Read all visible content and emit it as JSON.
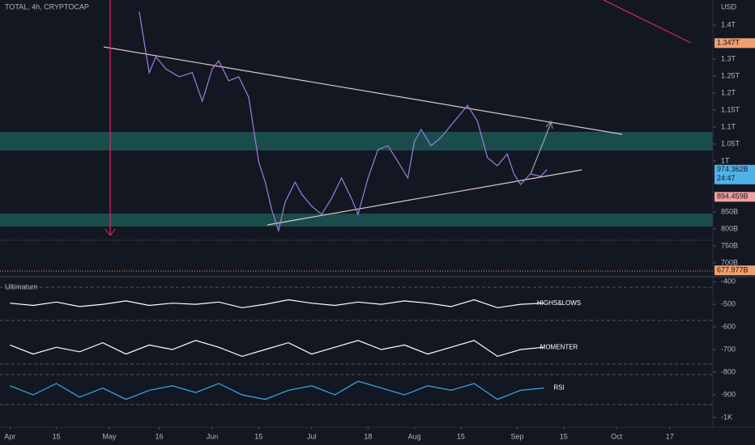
{
  "header": {
    "symbol": "TOTAL, 4h, CRYPTOCAP"
  },
  "chart_data": [
    {
      "type": "line",
      "currency": "USD",
      "color": "#9c7fe0",
      "x": [
        "May 10",
        "May 11",
        "May 13",
        "May 15",
        "May 18",
        "May 22",
        "May 26",
        "May 29",
        "Jun 1",
        "Jun 3",
        "Jun 6",
        "Jun 9",
        "Jun 12",
        "Jun 15",
        "Jun 17",
        "Jun 19",
        "Jun 21",
        "Jun 23",
        "Jun 26",
        "Jun 28",
        "Jul 1",
        "Jul 4",
        "Jul 7",
        "Jul 10",
        "Jul 13",
        "Jul 15",
        "Jul 18",
        "Jul 21",
        "Jul 24",
        "Jul 27",
        "Jul 30",
        "Aug 1",
        "Aug 3",
        "Aug 6",
        "Aug 9",
        "Aug 12",
        "Aug 15",
        "Aug 17",
        "Aug 20",
        "Aug 23",
        "Aug 26",
        "Aug 29",
        "Aug 31",
        "Sep 2",
        "Sep 5",
        "Sep 8",
        "Sep 10"
      ],
      "values": [
        1440,
        1379,
        1260,
        1307,
        1271,
        1248,
        1260,
        1176,
        1271,
        1295,
        1236,
        1248,
        1188,
        998,
        938,
        855,
        795,
        879,
        938,
        902,
        867,
        843,
        890,
        950,
        890,
        843,
        950,
        1033,
        1045,
        998,
        950,
        1057,
        1093,
        1045,
        1069,
        1105,
        1140,
        1164,
        1117,
        1010,
        986,
        1021,
        962,
        931,
        962,
        955,
        974.362
      ],
      "xlim": [
        "Mar 29",
        "Oct 30"
      ],
      "xticks": [
        {
          "value": "Apr 1",
          "label": "Apr"
        },
        {
          "value": "Apr 15",
          "label": "15"
        },
        {
          "value": "May 1",
          "label": "May"
        },
        {
          "value": "May 16",
          "label": "16"
        },
        {
          "value": "Jun 1",
          "label": "Jun"
        },
        {
          "value": "Jun 15",
          "label": "15"
        },
        {
          "value": "Jul 1",
          "label": "Jul"
        },
        {
          "value": "Jul 18",
          "label": "18"
        },
        {
          "value": "Aug 1",
          "label": "Aug"
        },
        {
          "value": "Aug 15",
          "label": "15"
        },
        {
          "value": "Sep 1",
          "label": "Sep"
        },
        {
          "value": "Sep 15",
          "label": "15"
        },
        {
          "value": "Oct 1",
          "label": "Oct"
        },
        {
          "value": "Oct 17",
          "label": "17"
        }
      ],
      "ylim": [
        676,
        1474
      ],
      "yticks": [
        {
          "value": 1400,
          "label": "1.4T"
        },
        {
          "value": 1300,
          "label": "1.3T"
        },
        {
          "value": 1250,
          "label": "1.25T"
        },
        {
          "value": 1200,
          "label": "1.2T"
        },
        {
          "value": 1150,
          "label": "1.15T"
        },
        {
          "value": 1100,
          "label": "1.1T"
        },
        {
          "value": 1050,
          "label": "1.05T"
        },
        {
          "value": 1000,
          "label": "1T"
        },
        {
          "value": 850,
          "label": "850B"
        },
        {
          "value": 800,
          "label": "800B"
        },
        {
          "value": 750,
          "label": "750B"
        },
        {
          "value": 700,
          "label": "700B"
        }
      ],
      "price_markers": [
        {
          "value": 1347,
          "label": "1.347T",
          "color": "#f0a070"
        },
        {
          "value": 974.362,
          "label": "974.362B",
          "color": "#4fb3e8"
        },
        {
          "value": 894.459,
          "label": "894.459B",
          "color": "#f0a0a0"
        },
        {
          "value": 677.977,
          "label": "677.977B",
          "color": "#f0a070"
        }
      ],
      "countdown": "24:47",
      "grid": false
    },
    {
      "type": "line",
      "title": "Ultimatum",
      "x": [
        "Apr 1",
        "Apr 8",
        "Apr 15",
        "Apr 22",
        "Apr 29",
        "May 6",
        "May 13",
        "May 20",
        "May 27",
        "Jun 3",
        "Jun 10",
        "Jun 17",
        "Jun 24",
        "Jul 1",
        "Jul 8",
        "Jul 15",
        "Jul 22",
        "Jul 29",
        "Aug 5",
        "Aug 12",
        "Aug 19",
        "Aug 26",
        "Sep 2",
        "Sep 9"
      ],
      "series": [
        {
          "name": "HIGHS&LOWS",
          "color": "#ffffff",
          "values": [
            -495,
            -505,
            -490,
            -510,
            -500,
            -485,
            -505,
            -495,
            -500,
            -490,
            -515,
            -500,
            -480,
            -495,
            -505,
            -490,
            -500,
            -485,
            -495,
            -510,
            -480,
            -515,
            -500,
            -495
          ]
        },
        {
          "name": "MOMENTER",
          "color": "#ffffff",
          "values": [
            -680,
            -720,
            -690,
            -710,
            -670,
            -720,
            -680,
            -700,
            -660,
            -690,
            -730,
            -700,
            -670,
            -720,
            -690,
            -660,
            -700,
            -680,
            -720,
            -690,
            -660,
            -730,
            -700,
            -690
          ]
        },
        {
          "name": "RSI",
          "color": "#3fa9e8",
          "values": [
            -860,
            -900,
            -850,
            -910,
            -870,
            -920,
            -880,
            -860,
            -890,
            -850,
            -900,
            -920,
            -880,
            -860,
            -900,
            -840,
            -870,
            -900,
            -860,
            -880,
            -850,
            -920,
            -880,
            -870
          ]
        }
      ],
      "ylim": [
        -1043,
        -389
      ],
      "yticks": [
        -400,
        -500,
        -600,
        -700,
        -800,
        -900,
        {
          "value": -1000,
          "label": "-1K"
        }
      ],
      "grid": false
    }
  ]
}
